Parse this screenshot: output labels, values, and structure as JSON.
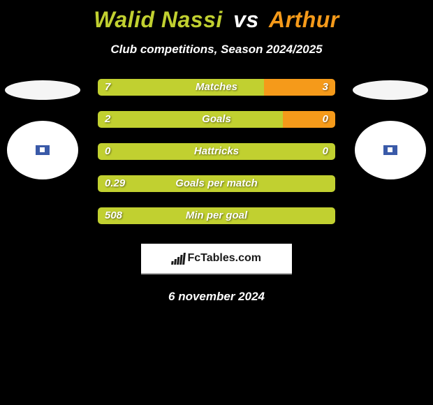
{
  "background_color": "#000000",
  "title": {
    "player1": "Walid Nassi",
    "vs": "vs",
    "player2": "Arthur",
    "player1_color": "#c1d030",
    "vs_color": "#ffffff",
    "player2_color": "#f59a1a",
    "fontsize": 32
  },
  "subtitle": "Club competitions, Season 2024/2025",
  "colors": {
    "left": "#c1d030",
    "right": "#f59a1a",
    "text": "#ffffff"
  },
  "bar_style": {
    "height": 24,
    "border_radius": 5,
    "gap": 22,
    "label_fontsize": 15
  },
  "stats": [
    {
      "label": "Matches",
      "left_val": "7",
      "right_val": "3",
      "left_pct": 70,
      "right_pct": 30
    },
    {
      "label": "Goals",
      "left_val": "2",
      "right_val": "0",
      "left_pct": 78,
      "right_pct": 22
    },
    {
      "label": "Hattricks",
      "left_val": "0",
      "right_val": "0",
      "left_pct": 100,
      "right_pct": 0
    },
    {
      "label": "Goals per match",
      "left_val": "0.29",
      "right_val": "",
      "left_pct": 100,
      "right_pct": 0
    },
    {
      "label": "Min per goal",
      "left_val": "508",
      "right_val": "",
      "left_pct": 100,
      "right_pct": 0
    }
  ],
  "left_player": {
    "flag_color": "#f5f5f5",
    "club_bg": "#ffffff",
    "club_badge_color": "#3a5aa8"
  },
  "right_player": {
    "flag_color": "#f5f5f5",
    "club_bg": "#ffffff",
    "club_badge_color": "#3a5aa8"
  },
  "brand": "FcTables.com",
  "date": "6 november 2024"
}
